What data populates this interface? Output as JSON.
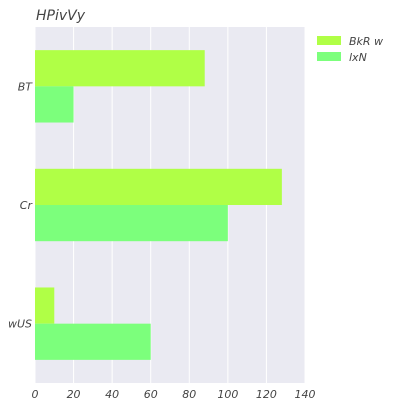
{
  "chart_data": {
    "type": "bar",
    "orientation": "horizontal",
    "title": "HPivVy",
    "xlabel": "",
    "ylabel": "",
    "categories": [
      "BT",
      "Cr",
      "wUS"
    ],
    "series": [
      {
        "name": "BkR w",
        "values": [
          88,
          128,
          10
        ],
        "color": "#b0ff46"
      },
      {
        "name": "lxN",
        "values": [
          20,
          100,
          60
        ],
        "color": "#7cff7c"
      }
    ],
    "xlim": [
      0,
      140
    ],
    "xticks": [
      0,
      20,
      40,
      60,
      80,
      100,
      120,
      140
    ],
    "grid": true,
    "legend_position": "top-right",
    "background": "#eaeaf2"
  }
}
